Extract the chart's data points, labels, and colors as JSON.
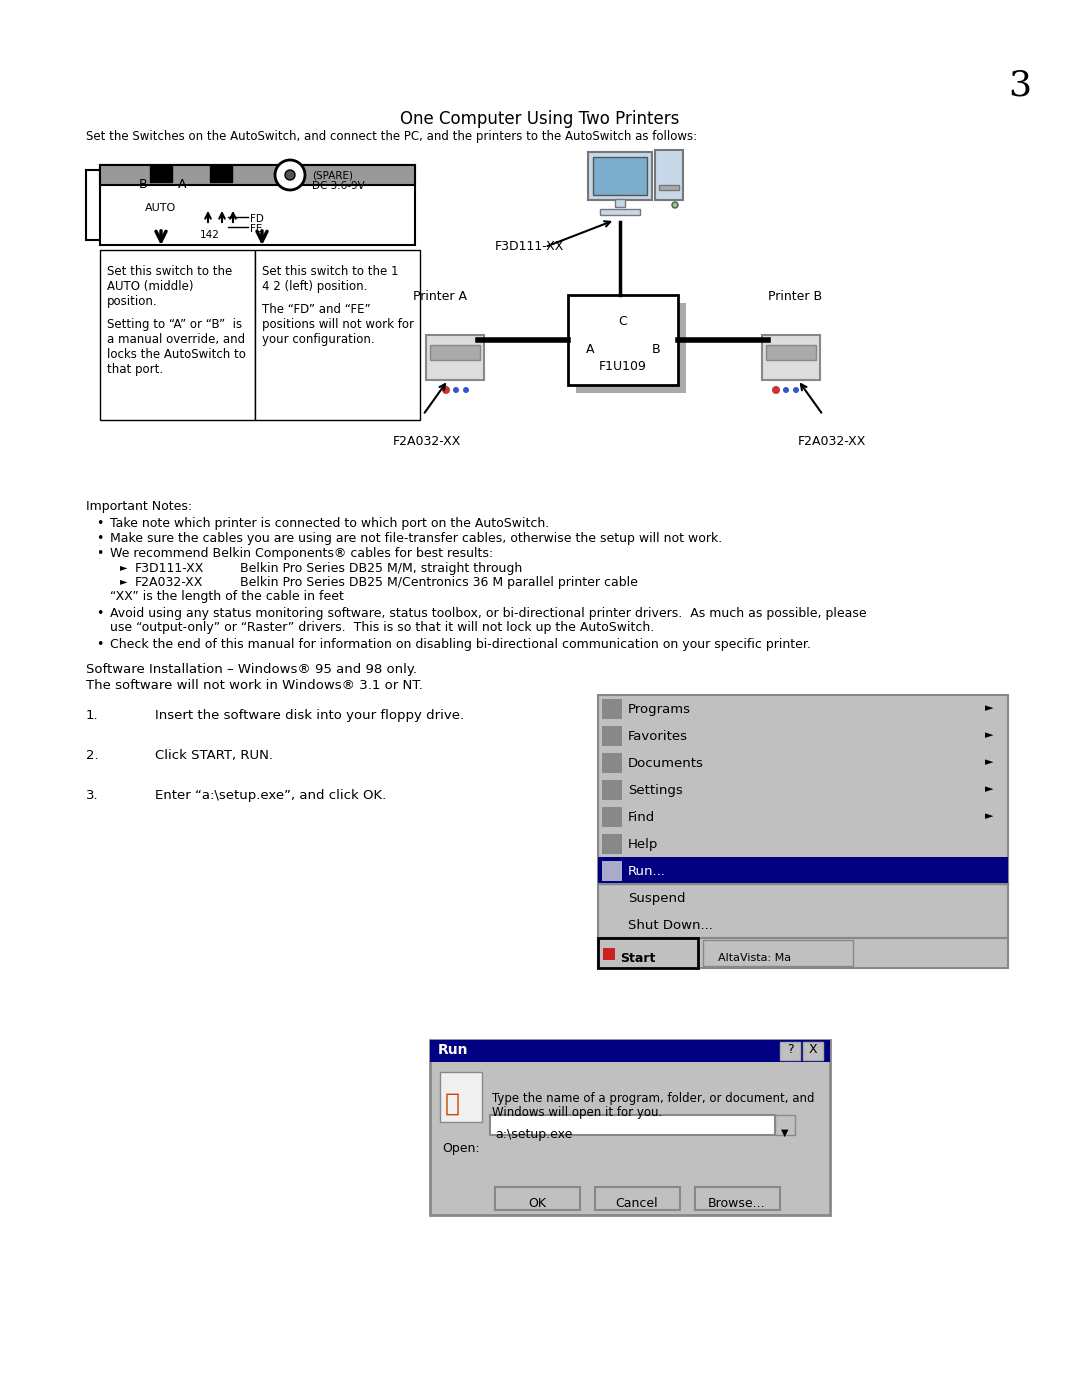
{
  "page_number": "3",
  "title": "One Computer Using Two Printers",
  "subtitle": "Set the Switches on the AutoSwitch, and connect the PC, and the printers to the AutoSwitch as follows:",
  "bg_color": "#ffffff",
  "text_color": "#000000",
  "important_notes_header": "Important Notes:",
  "bullet1": "Take note which printer is connected to which port on the AutoSwitch.",
  "bullet2": "Make sure the cables you are using are not file-transfer cables, otherwise the setup will not work.",
  "bullet3": "We recommend Belkin Components® cables for best results:",
  "sub1_label": "F3D111-XX",
  "sub1_text": "Belkin Pro Series DB25 M/M, straight through",
  "sub2_label": "F2A032-XX",
  "sub2_text": "Belkin Pro Series DB25 M/Centronics 36 M parallel printer cable",
  "sub3_text": "“XX” is the length of the cable in feet",
  "bullet4a": "Avoid using any status monitoring software, status toolbox, or bi-directional printer drivers.  As much as possible, please",
  "bullet4b": "use “output-only” or “Raster” drivers.  This is so that it will not lock up the AutoSwitch.",
  "bullet5": "Check the end of this manual for information on disabling bi-directional communication on your specific printer.",
  "software_line1": "Software Installation – Windows® 95 and 98 only.",
  "software_line2": "The software will not work in Windows® 3.1 or NT.",
  "step1_text": "Insert the software disk into your floppy drive.",
  "step2_text": "Click START, RUN.",
  "step3_text": "Enter “a:\\setup.exe”, and click OK.",
  "menu_items": [
    "Programs",
    "Favorites",
    "Documents",
    "Settings",
    "Find",
    "Help",
    "Run..."
  ],
  "menu_has_arrow": [
    true,
    true,
    true,
    true,
    true,
    false,
    false
  ],
  "menu_highlighted": [
    false,
    false,
    false,
    false,
    false,
    false,
    true
  ],
  "menu_extra": [
    "Suspend",
    "Shut Down..."
  ],
  "switch_left_text1": "Set this switch to the",
  "switch_left_text2": "AUTO (middle)",
  "switch_left_text3": "position.",
  "switch_left_text4": "Setting to “A” or “B”  is",
  "switch_left_text5": "a manual override, and",
  "switch_left_text6": "locks the AutoSwitch to",
  "switch_left_text7": "that port.",
  "switch_right_text1": "Set this switch to the 1",
  "switch_right_text2": "4 2 (left) position.",
  "switch_right_text3": "The “FD” and “FE”",
  "switch_right_text4": "positions will not work for",
  "switch_right_text5": "your configuration."
}
